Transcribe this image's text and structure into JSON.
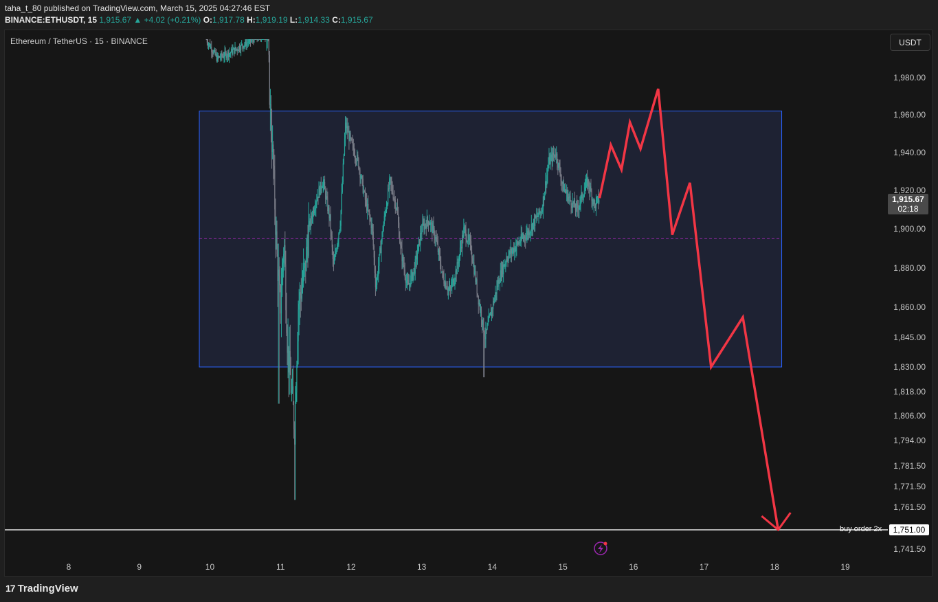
{
  "header": {
    "line1": "taha_t_80 published on TradingView.com, March 15, 2025 04:27:46 EST",
    "symbol": "BINANCE:ETHUSDT, 15",
    "price": "1,915.67",
    "change": "▲ +4.02 (+0.21%)",
    "o_label": "O:",
    "o_value": "1,917.78",
    "h_label": "H:",
    "h_value": "1,919.19",
    "l_label": "L:",
    "l_value": "1,914.33",
    "c_label": "C:",
    "c_value": "1,915.67"
  },
  "chart_title": "Ethereum / TetherUS · 15 · BINANCE",
  "currency_button": "USDT",
  "last_price": {
    "price": "1,915.67",
    "countdown": "02:18"
  },
  "buy_order": {
    "label": "buy order 2x",
    "price": "1,751.00"
  },
  "footer": {
    "brand": "TradingView",
    "logo_mark": "17"
  },
  "colors": {
    "up": "#26a69a",
    "down": "#787b86",
    "projection": "#f23645",
    "range_box_border": "#2962ff",
    "range_box_fill": "#1e2233",
    "midline": "#9c27b0",
    "buy_line": "#e0e0e0"
  },
  "chart_data": {
    "type": "candlestick",
    "symbol": "ETHUSDT",
    "interval": "15",
    "x_ticks": [
      "8",
      "9",
      "10",
      "11",
      "12",
      "13",
      "14",
      "15",
      "16",
      "17",
      "18",
      "19"
    ],
    "y_ticks": [
      "1,980.00",
      "1,960.00",
      "1,940.00",
      "1,920.00",
      "1,900.00",
      "1,880.00",
      "1,860.00",
      "1,845.00",
      "1,830.00",
      "1,818.00",
      "1,806.00",
      "1,794.00",
      "1,781.50",
      "1,771.50",
      "1,761.50",
      "1,741.50"
    ],
    "y_tick_values": [
      1980,
      1960,
      1940,
      1920,
      1900,
      1880,
      1860,
      1845,
      1830,
      1818,
      1806,
      1794,
      1781.5,
      1771.5,
      1761.5,
      1741.5
    ],
    "price_path": [
      {
        "day": 9.95,
        "price": 2010
      },
      {
        "day": 10.1,
        "price": 1995
      },
      {
        "day": 10.3,
        "price": 2000
      },
      {
        "day": 10.6,
        "price": 2010
      },
      {
        "day": 10.82,
        "price": 2015
      },
      {
        "day": 10.85,
        "price": 1966
      },
      {
        "day": 10.9,
        "price": 1930
      },
      {
        "day": 10.95,
        "price": 1885
      },
      {
        "day": 11.0,
        "price": 1860
      },
      {
        "day": 11.05,
        "price": 1895
      },
      {
        "day": 11.1,
        "price": 1840
      },
      {
        "day": 11.2,
        "price": 1800
      },
      {
        "day": 11.25,
        "price": 1860
      },
      {
        "day": 11.35,
        "price": 1880
      },
      {
        "day": 11.4,
        "price": 1900
      },
      {
        "day": 11.5,
        "price": 1915
      },
      {
        "day": 11.6,
        "price": 1925
      },
      {
        "day": 11.7,
        "price": 1905
      },
      {
        "day": 11.75,
        "price": 1880
      },
      {
        "day": 11.85,
        "price": 1905
      },
      {
        "day": 11.92,
        "price": 1955
      },
      {
        "day": 12.0,
        "price": 1945
      },
      {
        "day": 12.1,
        "price": 1935
      },
      {
        "day": 12.2,
        "price": 1915
      },
      {
        "day": 12.3,
        "price": 1900
      },
      {
        "day": 12.35,
        "price": 1870
      },
      {
        "day": 12.45,
        "price": 1900
      },
      {
        "day": 12.55,
        "price": 1925
      },
      {
        "day": 12.65,
        "price": 1910
      },
      {
        "day": 12.7,
        "price": 1890
      },
      {
        "day": 12.8,
        "price": 1870
      },
      {
        "day": 12.9,
        "price": 1880
      },
      {
        "day": 13.0,
        "price": 1900
      },
      {
        "day": 13.1,
        "price": 1905
      },
      {
        "day": 13.2,
        "price": 1895
      },
      {
        "day": 13.3,
        "price": 1875
      },
      {
        "day": 13.4,
        "price": 1868
      },
      {
        "day": 13.5,
        "price": 1880
      },
      {
        "day": 13.6,
        "price": 1900
      },
      {
        "day": 13.7,
        "price": 1890
      },
      {
        "day": 13.8,
        "price": 1865
      },
      {
        "day": 13.9,
        "price": 1845
      },
      {
        "day": 14.0,
        "price": 1860
      },
      {
        "day": 14.1,
        "price": 1875
      },
      {
        "day": 14.2,
        "price": 1885
      },
      {
        "day": 14.35,
        "price": 1892
      },
      {
        "day": 14.5,
        "price": 1898
      },
      {
        "day": 14.6,
        "price": 1904
      },
      {
        "day": 14.7,
        "price": 1910
      },
      {
        "day": 14.8,
        "price": 1935
      },
      {
        "day": 14.9,
        "price": 1940
      },
      {
        "day": 15.0,
        "price": 1922
      },
      {
        "day": 15.1,
        "price": 1915
      },
      {
        "day": 15.2,
        "price": 1910
      },
      {
        "day": 15.35,
        "price": 1925
      },
      {
        "day": 15.45,
        "price": 1912
      },
      {
        "day": 15.52,
        "price": 1916
      }
    ],
    "range_box": {
      "start_day": 9.85,
      "end_day": 18.1,
      "top": 1962,
      "bottom": 1830
    },
    "midline": 1895,
    "projection": [
      {
        "day": 15.52,
        "price": 1916
      },
      {
        "day": 15.68,
        "price": 1944
      },
      {
        "day": 15.83,
        "price": 1931
      },
      {
        "day": 15.95,
        "price": 1956
      },
      {
        "day": 16.1,
        "price": 1942
      },
      {
        "day": 16.35,
        "price": 1974
      },
      {
        "day": 16.55,
        "price": 1897
      },
      {
        "day": 16.8,
        "price": 1924
      },
      {
        "day": 17.1,
        "price": 1830
      },
      {
        "day": 17.55,
        "price": 1855
      },
      {
        "day": 18.05,
        "price": 1751
      }
    ],
    "buy_order_price": 1751,
    "last_price": 1915.67
  }
}
